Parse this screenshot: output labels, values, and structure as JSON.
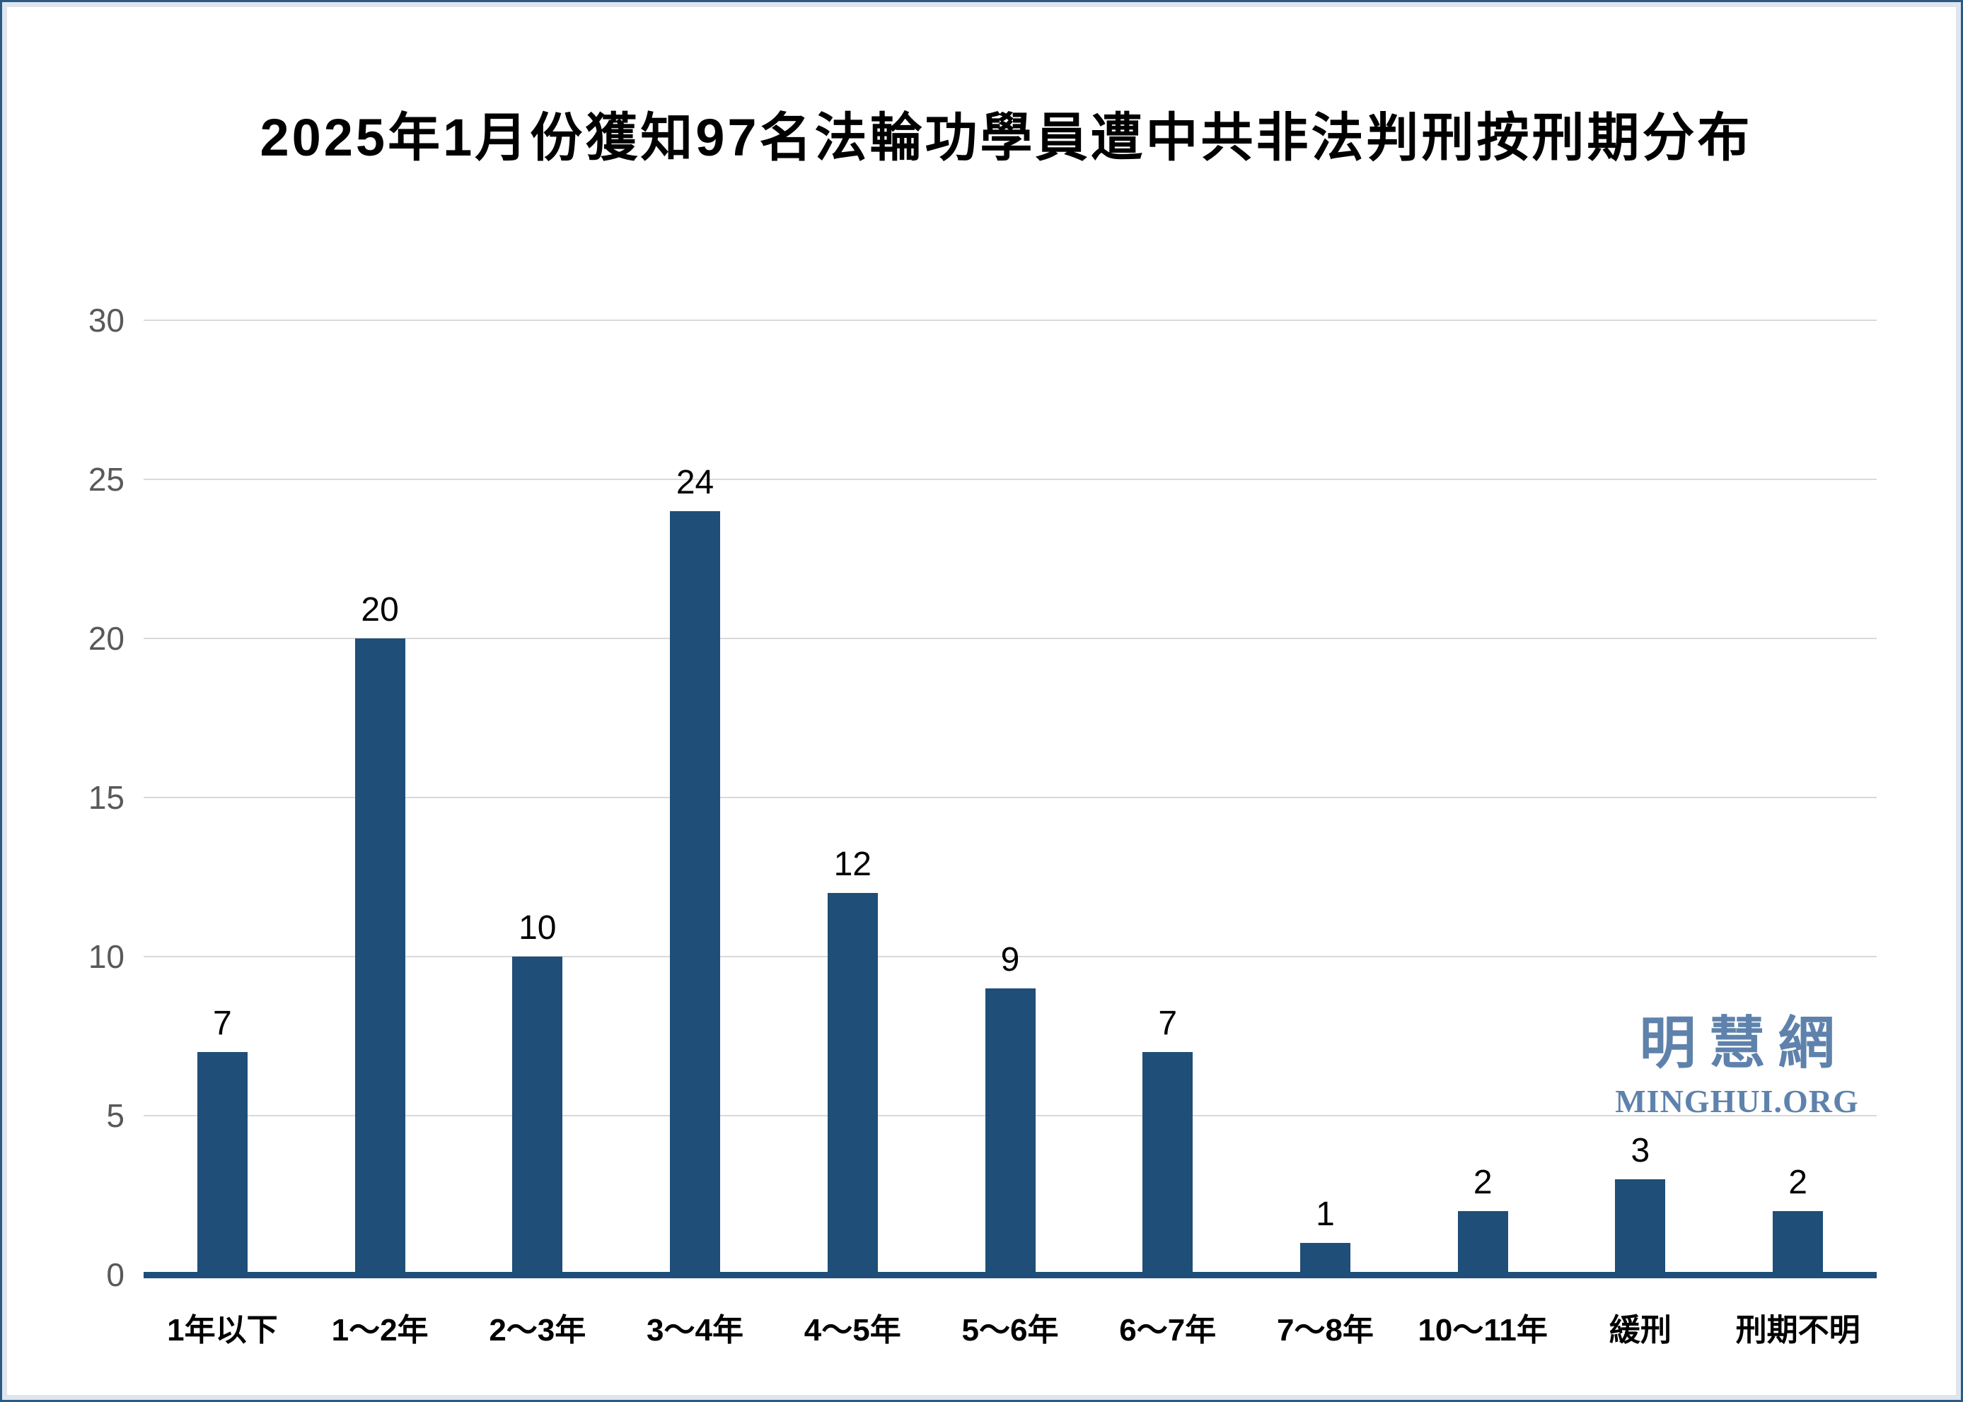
{
  "page": {
    "outer_border_color": "#2b5a84",
    "inner_border_color": "#dde5ee",
    "background": "#ffffff"
  },
  "chart_data": {
    "type": "bar",
    "title": "2025年1月份獲知97名法輪功學員遭中共非法判刑按刑期分布",
    "categories": [
      "1年以下",
      "1～2年",
      "2～3年",
      "3～4年",
      "4～5年",
      "5～6年",
      "6～7年",
      "7～8年",
      "10～11年",
      "緩刑",
      "刑期不明"
    ],
    "values": [
      7,
      20,
      10,
      24,
      12,
      9,
      7,
      1,
      2,
      3,
      2
    ],
    "data_labels_shown": true,
    "xlabel": "",
    "ylabel": "",
    "yticks": [
      0,
      5,
      10,
      15,
      20,
      25,
      30
    ],
    "ylim": [
      0,
      30
    ],
    "grid": "horizontal",
    "legend": "none",
    "bar_color": "#1F4E78",
    "axis_line_color": "#1F4E78",
    "gridline_color": "#D9D9D9",
    "ytick_color": "#595959",
    "label_color": "#000000"
  },
  "watermark": {
    "cn": "明慧網",
    "en": "MINGHUI.ORG",
    "color": "#5E82AC"
  }
}
